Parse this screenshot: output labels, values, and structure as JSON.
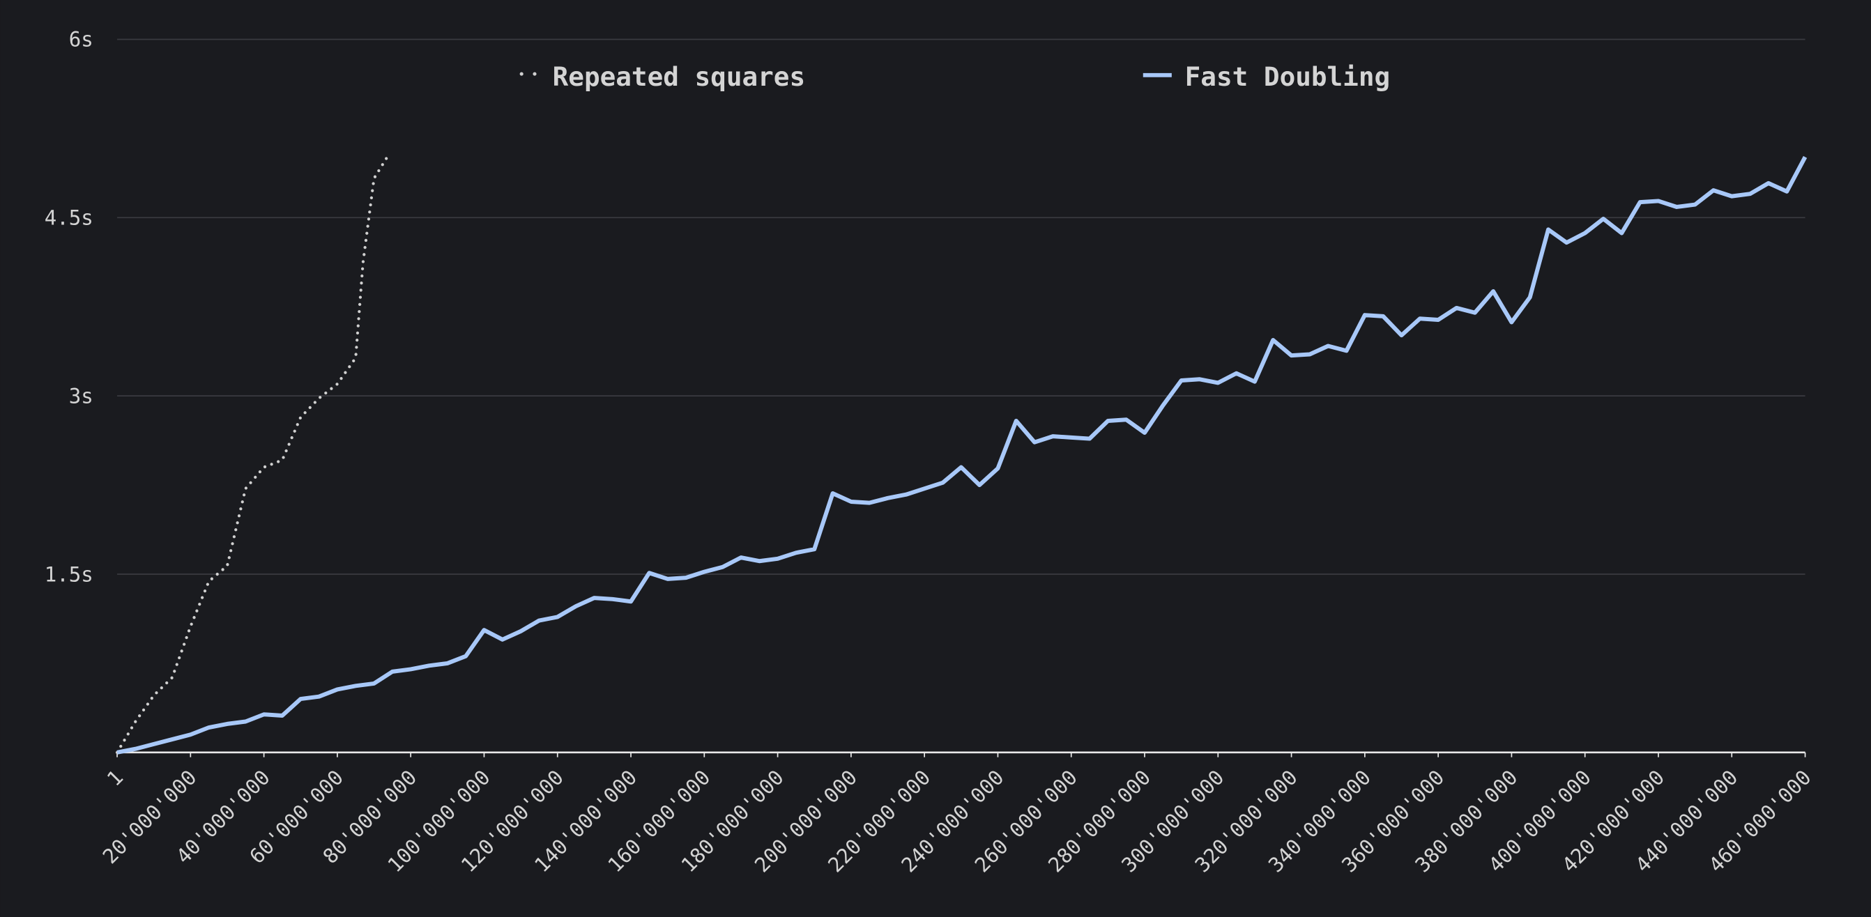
{
  "chart_data": {
    "type": "line",
    "xlim": [
      1,
      460000000
    ],
    "ylim": [
      0,
      6
    ],
    "yticks": [
      {
        "value": 1.5,
        "label": "1.5s"
      },
      {
        "value": 3,
        "label": "3s"
      },
      {
        "value": 4.5,
        "label": "4.5s"
      },
      {
        "value": 6,
        "label": "6s"
      }
    ],
    "xticks": [
      1,
      {
        "value": 20000000,
        "label": "20'000'000"
      },
      {
        "value": 40000000,
        "label": "40'000'000"
      },
      {
        "value": 60000000,
        "label": "60'000'000"
      },
      {
        "value": 80000000,
        "label": "80'000'000"
      },
      {
        "value": 100000000,
        "label": "100'000'000"
      },
      {
        "value": 120000000,
        "label": "120'000'000"
      },
      {
        "value": 140000000,
        "label": "140'000'000"
      },
      {
        "value": 160000000,
        "label": "160'000'000"
      },
      {
        "value": 180000000,
        "label": "180'000'000"
      },
      {
        "value": 200000000,
        "label": "200'000'000"
      },
      {
        "value": 220000000,
        "label": "220'000'000"
      },
      {
        "value": 240000000,
        "label": "240'000'000"
      },
      {
        "value": 260000000,
        "label": "260'000'000"
      },
      {
        "value": 280000000,
        "label": "280'000'000"
      },
      {
        "value": 300000000,
        "label": "300'000'000"
      },
      {
        "value": 320000000,
        "label": "320'000'000"
      },
      {
        "value": 340000000,
        "label": "340'000'000"
      },
      {
        "value": 360000000,
        "label": "360'000'000"
      },
      {
        "value": 380000000,
        "label": "380'000'000"
      },
      {
        "value": 400000000,
        "label": "400'000'000"
      },
      {
        "value": 420000000,
        "label": "420'000'000"
      },
      {
        "value": 440000000,
        "label": "440'000'000"
      },
      {
        "value": 460000000,
        "label": "460'000'000"
      }
    ],
    "grid": true,
    "series": [
      {
        "name": "Repeated squares",
        "color": "#d0d0d0",
        "style": "dotted",
        "x": [
          1,
          5000000,
          10000000,
          15000000,
          20000000,
          25000000,
          30000000,
          35000000,
          40000000,
          45000000,
          50000000,
          55000000,
          60000000,
          65000000,
          67000000,
          70000000,
          74000000
        ],
        "values": [
          0,
          0.26,
          0.48,
          0.63,
          1.06,
          1.44,
          1.57,
          2.22,
          2.4,
          2.46,
          2.82,
          2.98,
          3.1,
          3.32,
          4.12,
          4.83,
          5.03
        ]
      },
      {
        "name": "Fast Doubling",
        "color": "#a8c8f8",
        "style": "solid",
        "x": [
          1,
          5000000,
          10000000,
          15000000,
          20000000,
          25000000,
          30000000,
          35000000,
          40000000,
          45000000,
          50000000,
          55000000,
          60000000,
          65000000,
          70000000,
          75000000,
          80000000,
          85000000,
          90000000,
          95000000,
          100000000,
          105000000,
          110000000,
          115000000,
          120000000,
          125000000,
          130000000,
          135000000,
          140000000,
          145000000,
          150000000,
          155000000,
          160000000,
          165000000,
          170000000,
          175000000,
          180000000,
          185000000,
          190000000,
          195000000,
          200000000,
          205000000,
          210000000,
          215000000,
          220000000,
          225000000,
          230000000,
          235000000,
          240000000,
          245000000,
          250000000,
          255000000,
          260000000,
          265000000,
          270000000,
          275000000,
          280000000,
          285000000,
          290000000,
          295000000,
          300000000,
          305000000,
          310000000,
          315000000,
          320000000,
          325000000,
          330000000,
          335000000,
          340000000,
          345000000,
          350000000,
          355000000,
          360000000,
          365000000,
          370000000,
          375000000,
          380000000,
          385000000,
          390000000,
          395000000,
          400000000,
          405000000,
          410000000,
          415000000,
          420000000,
          425000000,
          430000000,
          435000000,
          440000000,
          445000000,
          450000000,
          455000000,
          460000000
        ],
        "values": [
          0,
          0.03,
          0.07,
          0.11,
          0.15,
          0.21,
          0.24,
          0.26,
          0.32,
          0.31,
          0.45,
          0.47,
          0.53,
          0.56,
          0.58,
          0.68,
          0.7,
          0.73,
          0.75,
          0.81,
          1.03,
          0.95,
          1.02,
          1.11,
          1.14,
          1.23,
          1.3,
          1.29,
          1.27,
          1.51,
          1.46,
          1.47,
          1.52,
          1.56,
          1.64,
          1.61,
          1.63,
          1.68,
          1.71,
          2.18,
          2.11,
          2.1,
          2.14,
          2.17,
          2.22,
          2.27,
          2.4,
          2.25,
          2.39,
          2.79,
          2.61,
          2.66,
          2.65,
          2.64,
          2.79,
          2.8,
          2.69,
          2.92,
          3.13,
          3.14,
          3.11,
          3.19,
          3.12,
          3.47,
          3.34,
          3.35,
          3.42,
          3.38,
          3.68,
          3.67,
          3.51,
          3.65,
          3.64,
          3.74,
          3.7,
          3.88,
          3.62,
          3.83,
          4.4,
          4.29,
          4.37,
          4.49,
          4.37,
          4.63,
          4.64,
          4.59,
          4.61,
          4.73,
          4.68,
          4.7,
          4.79,
          4.72,
          5.01
        ]
      }
    ]
  }
}
